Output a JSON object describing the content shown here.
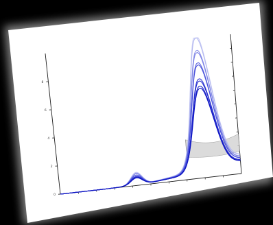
{
  "colors": {
    "background": "#000000",
    "card": "#ffffff",
    "card_shadow": "#7d7d7d",
    "axis": "#1a1a1a",
    "band_fill": "#cfcfcf",
    "band_edge": "#9a9a9a"
  },
  "chart_data": {
    "type": "line",
    "title": "",
    "xlabel": "",
    "ylabel": "",
    "grid": false,
    "legend": "none",
    "xlim": [
      0,
      10
    ],
    "ylim": [
      0,
      10
    ],
    "y_tick_labels": [
      {
        "value": 0,
        "label": "0"
      },
      {
        "value": 2,
        "label": "2"
      },
      {
        "value": 4,
        "label": "4"
      },
      {
        "value": 6,
        "label": "6"
      },
      {
        "value": 8,
        "label": "8"
      }
    ],
    "x_minor_ticks": [
      1,
      2,
      3,
      4,
      5,
      6,
      7,
      8,
      9
    ],
    "right_axis_ticks": [
      1,
      2,
      3,
      4,
      5,
      6,
      7,
      8,
      9
    ],
    "peak_x": 8.1,
    "bump_x": 4.25,
    "series": [
      {
        "color": "#c9ccf4",
        "peak": 9.65,
        "bump": 0.9
      },
      {
        "color": "#b4b9f0",
        "peak": 9.45,
        "bump": 0.85
      },
      {
        "color": "#8c92e8",
        "peak": 8.6,
        "bump": 0.8
      },
      {
        "color": "#7e84e6",
        "peak": 8.45,
        "bump": 0.8
      },
      {
        "color": "#5c63df",
        "peak": 7.75,
        "bump": 0.7
      },
      {
        "color": "#4b53db",
        "peak": 7.6,
        "bump": 0.7
      },
      {
        "color": "#3239d4",
        "peak": 6.65,
        "bump": 0.6
      },
      {
        "color": "#262ecf",
        "peak": 6.5,
        "bump": 0.6
      },
      {
        "color": "#1820c8",
        "peak": 6.15,
        "bump": 0.55
      },
      {
        "color": "#0d14c2",
        "peak": 6.0,
        "bump": 0.5
      }
    ],
    "gray_band": {
      "x_start": 7.1,
      "upper_start": 2.85,
      "upper_mid": 2.05,
      "upper_end": 2.85,
      "lower_start": 1.6,
      "lower_mid": 1.3,
      "lower_end": 1.6
    }
  }
}
